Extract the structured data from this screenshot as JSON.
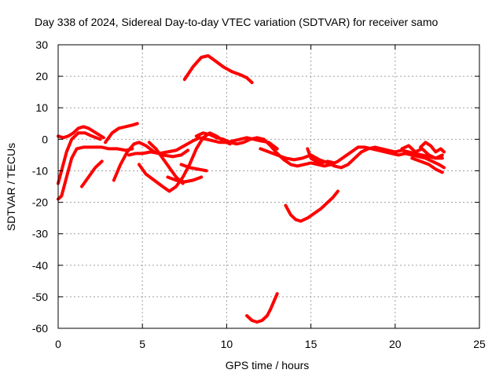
{
  "chart_data": {
    "type": "line",
    "title": "Day 338 of 2024, Sidereal Day-to-day VTEC variation (SDTVAR) for receiver samo",
    "xlabel": "GPS time / hours",
    "ylabel": "SDTVAR / TECUs",
    "xlim": [
      0,
      25
    ],
    "ylim": [
      -60,
      30
    ],
    "xticks": [
      0,
      5,
      10,
      15,
      20,
      25
    ],
    "yticks": [
      -60,
      -50,
      -40,
      -30,
      -20,
      -10,
      0,
      10,
      20,
      30
    ],
    "grid": true,
    "series_color": "#ff0000",
    "series": [
      {
        "name": "s1",
        "x": [
          0.0,
          0.3,
          0.6,
          0.9,
          1.2,
          1.5,
          1.8,
          2.1,
          2.4,
          2.7
        ],
        "y": [
          1,
          0.5,
          1,
          2,
          3.5,
          4,
          3.5,
          2.5,
          1.5,
          0.5
        ]
      },
      {
        "name": "s2",
        "x": [
          0.0,
          0.2,
          0.5,
          0.8,
          1.2,
          1.6,
          2.0,
          2.5
        ],
        "y": [
          -14,
          -10,
          -4,
          0,
          2,
          2,
          1,
          0
        ]
      },
      {
        "name": "s3",
        "x": [
          0.0,
          0.2,
          0.5,
          0.8,
          1.1,
          1.5,
          2.0,
          2.6,
          3.0,
          3.5,
          4.0,
          4.4
        ],
        "y": [
          -19,
          -18,
          -12,
          -6,
          -3,
          -2.5,
          -2.5,
          -2.5,
          -3,
          -3,
          -3.5,
          -3
        ]
      },
      {
        "name": "s4",
        "x": [
          1.4,
          1.8,
          2.2,
          2.6
        ],
        "y": [
          -15,
          -12,
          -9,
          -7
        ]
      },
      {
        "name": "s5",
        "x": [
          3.3,
          3.7,
          4.1,
          4.5,
          4.8,
          5.2,
          5.7,
          6.2,
          6.8,
          7.3,
          7.7
        ],
        "y": [
          -13,
          -8,
          -4,
          -1.5,
          -1,
          -2,
          -4,
          -5,
          -5.5,
          -5,
          -3.5
        ]
      },
      {
        "name": "s6",
        "x": [
          2.8,
          3.2,
          3.6,
          4.0,
          4.4,
          4.7
        ],
        "y": [
          -1,
          2,
          3.5,
          4,
          4.5,
          5
        ]
      },
      {
        "name": "s7",
        "x": [
          4.2,
          4.6,
          5.0,
          5.5,
          6.0,
          6.5,
          7.0,
          7.5,
          8.0,
          8.4,
          8.8,
          9.2,
          9.6,
          10.0,
          10.4,
          10.8,
          11.2,
          11.6,
          12.0,
          12.5,
          13.0
        ],
        "y": [
          -5,
          -4.5,
          -4.5,
          -4,
          -4.5,
          -4,
          -3.5,
          -2,
          -0.5,
          0.5,
          0,
          -0.5,
          -1,
          -1,
          -0.5,
          0,
          0.5,
          0,
          -0.5,
          -1,
          -3
        ]
      },
      {
        "name": "s8",
        "x": [
          4.8,
          5.2,
          5.7,
          6.2,
          6.6,
          7.0,
          7.4,
          7.8,
          8.2,
          8.6,
          9.0,
          9.4,
          9.8,
          10.2
        ],
        "y": [
          -8,
          -11,
          -13,
          -15,
          -16.5,
          -15,
          -12,
          -8,
          -3,
          0.5,
          2,
          1,
          -0.5,
          -1.5
        ]
      },
      {
        "name": "s9",
        "x": [
          5.4,
          5.8,
          6.2,
          6.6,
          7.0,
          7.4
        ],
        "y": [
          -1,
          -3,
          -6,
          -9,
          -12,
          -14
        ]
      },
      {
        "name": "s10",
        "x": [
          6.5,
          7.0,
          7.5,
          8.0,
          8.5
        ],
        "y": [
          -12,
          -13,
          -13.5,
          -13,
          -12
        ]
      },
      {
        "name": "s11",
        "x": [
          7.3,
          7.8,
          8.3,
          8.8
        ],
        "y": [
          -8,
          -9,
          -9.5,
          -10
        ]
      },
      {
        "name": "s12",
        "x": [
          7.5,
          8.0,
          8.5,
          8.9,
          9.3,
          9.8,
          10.3,
          10.8,
          11.2,
          11.5
        ],
        "y": [
          19,
          23,
          26,
          26.5,
          25,
          23,
          21.5,
          20.5,
          19.5,
          18
        ]
      },
      {
        "name": "s13",
        "x": [
          8.2,
          8.6,
          9.0,
          9.4,
          9.8,
          10.2,
          10.6,
          11.0,
          11.4,
          11.8,
          12.2,
          12.6,
          13.0,
          13.4,
          13.8,
          14.2,
          14.6,
          15.0,
          15.4,
          15.8,
          16.2,
          16.6,
          17.0,
          17.4,
          17.8,
          18.2,
          18.6,
          19.0,
          19.4,
          19.8,
          20.2,
          20.6,
          21.0,
          21.4,
          21.8,
          22.2,
          22.6,
          22.9
        ],
        "y": [
          1,
          2,
          1.5,
          0.5,
          0,
          -1,
          -1.5,
          -1,
          0,
          0.5,
          0,
          -2,
          -4.5,
          -6.5,
          -8,
          -8.5,
          -8,
          -7.5,
          -8,
          -8.5,
          -8,
          -7,
          -5.5,
          -4,
          -2.5,
          -2.5,
          -3,
          -3.5,
          -4,
          -4.5,
          -5,
          -4.5,
          -5,
          -5.5,
          -6,
          -7,
          -8,
          -9
        ]
      },
      {
        "name": "s14",
        "x": [
          12.0,
          12.5,
          13.0,
          13.5,
          14.0,
          14.5,
          15.0,
          15.5,
          16.0,
          16.4,
          16.8,
          17.2,
          17.6,
          18.0,
          18.4,
          18.8,
          19.2,
          19.6,
          20.0,
          20.4,
          20.8,
          21.2,
          21.6,
          22.0,
          22.4,
          22.8
        ],
        "y": [
          -3,
          -4,
          -5,
          -6,
          -6.5,
          -6,
          -5,
          -6.5,
          -7.5,
          -8.5,
          -9,
          -8,
          -6,
          -4,
          -3,
          -2.5,
          -3,
          -3.5,
          -4,
          -3.5,
          -4,
          -4.5,
          -5,
          -5.5,
          -6,
          -6
        ]
      },
      {
        "name": "s15",
        "x": [
          14.8,
          15.0,
          15.3,
          15.6,
          16.0,
          16.4
        ],
        "y": [
          -3,
          -6,
          -7,
          -7.5,
          -7,
          -7.5
        ]
      },
      {
        "name": "s16",
        "x": [
          20.4,
          20.8,
          21.2,
          21.6,
          22.0,
          22.4,
          22.8
        ],
        "y": [
          -3,
          -2,
          -4,
          -3,
          -5,
          -6,
          -5
        ]
      },
      {
        "name": "s17",
        "x": [
          21.5,
          21.8,
          22.1,
          22.4,
          22.7,
          22.9
        ],
        "y": [
          -2.5,
          -1,
          -2,
          -4,
          -3,
          -4
        ]
      },
      {
        "name": "s18",
        "x": [
          21.0,
          21.5,
          22.0,
          22.4,
          22.8
        ],
        "y": [
          -6,
          -7,
          -8,
          -9.5,
          -10.5
        ]
      },
      {
        "name": "s19",
        "x": [
          13.5,
          13.8,
          14.1,
          14.4,
          14.8,
          15.2,
          15.6,
          16.0,
          16.3,
          16.6
        ],
        "y": [
          -21,
          -24,
          -25.5,
          -26,
          -25,
          -23.5,
          -22,
          -20,
          -18.5,
          -16.5
        ]
      },
      {
        "name": "s20",
        "x": [
          11.2,
          11.5,
          11.8,
          12.1,
          12.4,
          12.6,
          12.8,
          13.0
        ],
        "y": [
          -56,
          -57.5,
          -58,
          -57.5,
          -56,
          -54,
          -51.5,
          -49
        ]
      }
    ]
  }
}
